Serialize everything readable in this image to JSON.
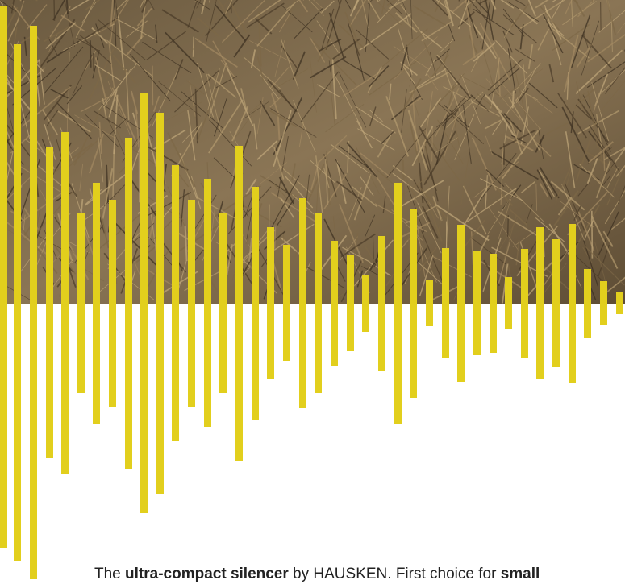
{
  "caption": {
    "segments": [
      {
        "text": "The ",
        "bold": false
      },
      {
        "text": "ultra-compact silencer",
        "bold": true
      },
      {
        "text": " by HAUSKEN. First choice for ",
        "bold": false
      },
      {
        "text": "small",
        "bold": true
      }
    ]
  }
}
